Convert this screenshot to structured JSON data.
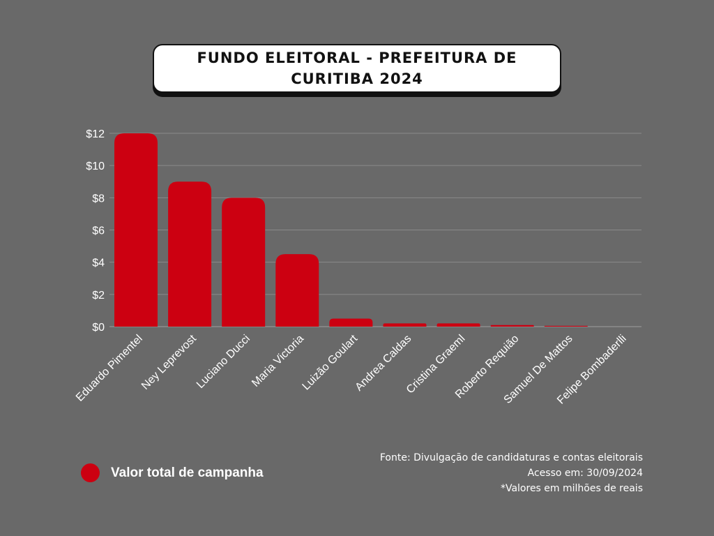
{
  "title": "FUNDO ELEITORAL - PREFEITURA DE CURITIBA 2024",
  "legend": {
    "label": "Valor total de campanha",
    "color": "#cc0011"
  },
  "source": {
    "line1": "Fonte: Divulgação de candidaturas e contas eleitorais",
    "line2": "Acesso em: 30/09/2024",
    "line3": "*Valores em milhões de reais"
  },
  "chart_data": {
    "type": "bar",
    "title": "FUNDO ELEITORAL - PREFEITURA DE CURITIBA 2024",
    "categories": [
      "Eduardo Pimentel",
      "Ney Leprevost",
      "Luciano Ducci",
      "Maria Victoria",
      "Luizão Goulart",
      "Andrea Caldas",
      "Cristina Graeml",
      "Roberto Requião",
      "Samuel De Mattos",
      "Felipe Bombaderlli"
    ],
    "series": [
      {
        "name": "Valor total de campanha",
        "values": [
          12,
          9,
          8,
          4.5,
          0.5,
          0.2,
          0.2,
          0.1,
          0.05,
          0
        ],
        "color": "#cc0011"
      }
    ],
    "y_ticks": [
      "$0",
      "$2",
      "$4",
      "$6",
      "$8",
      "$10",
      "$12"
    ],
    "y_tick_values": [
      0,
      2,
      4,
      6,
      8,
      10,
      12
    ],
    "ylim": [
      0,
      12
    ],
    "xlabel": "",
    "ylabel": "",
    "grid": true,
    "legend_position": "bottom-left",
    "colors": {
      "background": "#696969",
      "grid": "#8a8a8a",
      "text": "#ffffff",
      "bar": "#cc0011"
    }
  }
}
